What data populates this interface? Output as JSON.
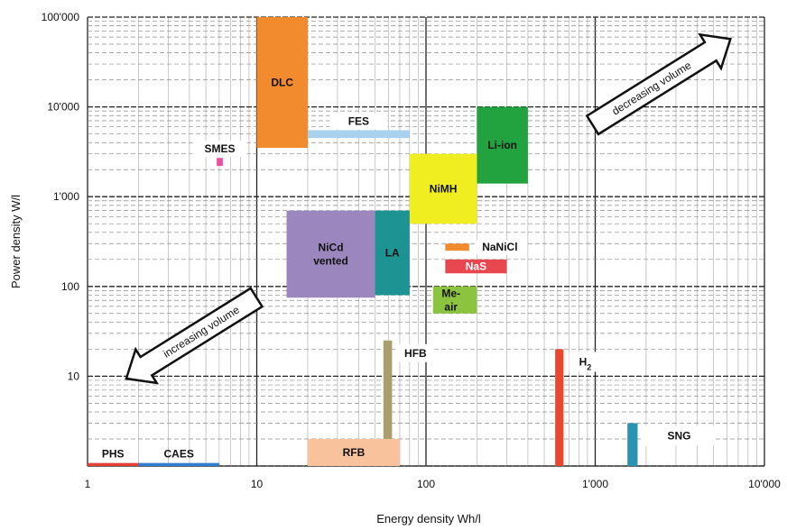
{
  "chart_data": {
    "type": "range-area",
    "title": "",
    "xlabel": "Energy density Wh/l",
    "ylabel": "Power density W/l",
    "x_scale": "log",
    "y_scale": "log",
    "xlim": [
      1,
      10000
    ],
    "ylim": [
      1,
      100000
    ],
    "grid": true,
    "x_ticks": [
      {
        "value": 1,
        "label": "1"
      },
      {
        "value": 10,
        "label": "10"
      },
      {
        "value": 100,
        "label": "100"
      },
      {
        "value": 1000,
        "label": "1'000"
      },
      {
        "value": 10000,
        "label": "10'000"
      }
    ],
    "y_ticks": [
      {
        "value": 10,
        "label": "10"
      },
      {
        "value": 100,
        "label": "100"
      },
      {
        "value": 1000,
        "label": "1'000"
      },
      {
        "value": 10000,
        "label": "10'000"
      },
      {
        "value": 100000,
        "label": "100'000"
      }
    ],
    "technologies": [
      {
        "name": "DLC",
        "label": "DLC",
        "x": [
          10,
          20
        ],
        "y": [
          3500,
          100000
        ],
        "color": "#f28a2e",
        "text_color": "#111111"
      },
      {
        "name": "FES",
        "label": "FES",
        "x": [
          20,
          80
        ],
        "y": [
          4500,
          5500
        ],
        "color": "#a9d1ee",
        "text_color": "#111111"
      },
      {
        "name": "SMES",
        "label": "SMES",
        "x": [
          5.8,
          6.3
        ],
        "y": [
          2200,
          2700
        ],
        "color": "#ec4f9e",
        "text_color": "#111111"
      },
      {
        "name": "Li-ion",
        "label": "Li-ion",
        "x": [
          200,
          400
        ],
        "y": [
          1400,
          10000
        ],
        "color": "#22a33f",
        "text_color": "#111111"
      },
      {
        "name": "NiMH",
        "label": "NiMH",
        "x": [
          80,
          200
        ],
        "y": [
          500,
          3000
        ],
        "color": "#f0ee21",
        "text_color": "#111111"
      },
      {
        "name": "NiCd vented",
        "label": [
          "NiCd",
          "vented"
        ],
        "x": [
          15,
          50
        ],
        "y": [
          75,
          700
        ],
        "color": "#9b86be",
        "text_color": "#111111"
      },
      {
        "name": "LA",
        "label": "LA",
        "x": [
          50,
          80
        ],
        "y": [
          80,
          700
        ],
        "color": "#1e9393",
        "text_color": "#111111"
      },
      {
        "name": "NaNiCl",
        "label": "NaNiCl",
        "x": [
          130,
          180
        ],
        "y": [
          250,
          300
        ],
        "color": "#f28a2e",
        "text_color": "#111111"
      },
      {
        "name": "NaS",
        "label": "NaS",
        "x": [
          130,
          300
        ],
        "y": [
          140,
          200
        ],
        "color": "#e9474f",
        "text_color": "#ffffff"
      },
      {
        "name": "Me-air",
        "label": [
          "Me-",
          "air"
        ],
        "x": [
          110,
          200
        ],
        "y": [
          50,
          100
        ],
        "color": "#8cc43f",
        "text_color": "#111111"
      },
      {
        "name": "HFB",
        "label": "HFB",
        "x": [
          56,
          63
        ],
        "y": [
          1,
          25
        ],
        "color": "#a89e6e",
        "text_color": "#111111"
      },
      {
        "name": "RFB",
        "label": "RFB",
        "x": [
          20,
          70
        ],
        "y": [
          1,
          2
        ],
        "color": "#f8c29d",
        "text_color": "#111111"
      },
      {
        "name": "H2",
        "label": "H",
        "label_sub": "2",
        "x": [
          580,
          650
        ],
        "y": [
          1,
          20
        ],
        "color": "#e9472e",
        "text_color": "#111111"
      },
      {
        "name": "SNG",
        "label": "SNG",
        "x": [
          1550,
          1780
        ],
        "y": [
          1,
          3
        ],
        "color": "#2b93b0",
        "text_color": "#111111"
      },
      {
        "name": "PHS",
        "label": "PHS",
        "x": [
          1,
          2
        ],
        "y": [
          1,
          1.08
        ],
        "color": "#e34232",
        "text_color": "#111111"
      },
      {
        "name": "CAES",
        "label": "CAES",
        "x": [
          2,
          6
        ],
        "y": [
          1,
          1.08
        ],
        "color": "#2e7fd3",
        "text_color": "#111111"
      }
    ],
    "annotations": [
      {
        "text": "decreasing volume",
        "direction": "up-right"
      },
      {
        "text": "increasing volume",
        "direction": "down-left"
      }
    ]
  }
}
